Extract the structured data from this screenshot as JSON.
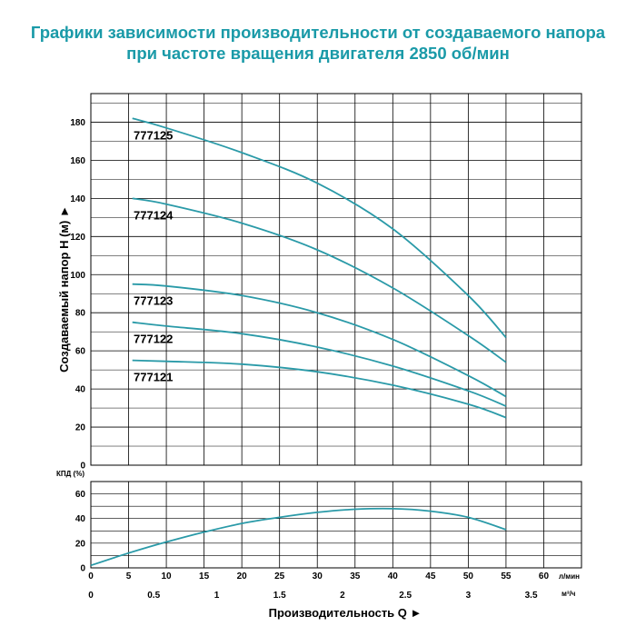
{
  "title": {
    "line1": "Графики зависимости производительности от создаваемого напора",
    "line2": "при частоте вращения двигателя 2850 об/мин"
  },
  "colors": {
    "title": "#1a9aa8",
    "curve": "#2a9aa8",
    "grid": "#000000"
  },
  "chart_data": [
    {
      "type": "line",
      "ylabel": "Создаваемый напор H (м) ►",
      "ylim": [
        0,
        195
      ],
      "yticks": [
        0,
        20,
        40,
        60,
        80,
        100,
        120,
        140,
        160,
        180
      ],
      "xlim": [
        0,
        65
      ],
      "xticks": [
        0,
        5,
        10,
        15,
        20,
        25,
        30,
        35,
        40,
        45,
        50,
        55,
        60
      ],
      "grid": true,
      "series": [
        {
          "name": "777125",
          "x": [
            5.5,
            10,
            20,
            30,
            40,
            50,
            55
          ],
          "values": [
            182,
            177,
            164,
            148,
            124,
            89,
            67
          ]
        },
        {
          "name": "777124",
          "x": [
            5.5,
            10,
            20,
            30,
            40,
            50,
            55
          ],
          "values": [
            140,
            137,
            127,
            113,
            93,
            68,
            54
          ]
        },
        {
          "name": "777123",
          "x": [
            5.5,
            10,
            20,
            30,
            40,
            50,
            55
          ],
          "values": [
            95,
            94,
            89,
            80,
            66,
            47,
            36
          ]
        },
        {
          "name": "777122",
          "x": [
            5.5,
            10,
            20,
            30,
            40,
            50,
            55
          ],
          "values": [
            75,
            73,
            69,
            62,
            52,
            39,
            31
          ]
        },
        {
          "name": "777121",
          "x": [
            5.5,
            10,
            20,
            30,
            40,
            50,
            55
          ],
          "values": [
            55,
            54.5,
            53,
            49,
            42,
            32,
            25
          ]
        }
      ]
    },
    {
      "type": "line",
      "ylabel": "КПД (%)",
      "ylim": [
        0,
        70
      ],
      "yticks": [
        0,
        20,
        40,
        60
      ],
      "xlim": [
        0,
        65
      ],
      "xticks": [
        0,
        5,
        10,
        15,
        20,
        25,
        30,
        35,
        40,
        45,
        50,
        55,
        60
      ],
      "xunit": "л/мин",
      "x2ticks": [
        {
          "label": "0",
          "q": 0
        },
        {
          "label": "0.5",
          "q": 8.33
        },
        {
          "label": "1",
          "q": 16.67
        },
        {
          "label": "1.5",
          "q": 25
        },
        {
          "label": "2",
          "q": 33.33
        },
        {
          "label": "2.5",
          "q": 41.67
        },
        {
          "label": "3",
          "q": 50
        },
        {
          "label": "3.5",
          "q": 58.33
        }
      ],
      "x2unit": "м³/ч",
      "xlabel": "Производительность Q ►",
      "grid": true,
      "series": [
        {
          "x": [
            0,
            5,
            10,
            15,
            20,
            25,
            30,
            35,
            40,
            45,
            50,
            55
          ],
          "values": [
            2,
            12,
            21,
            29,
            36,
            41,
            45,
            47.5,
            48,
            46,
            41,
            31
          ]
        }
      ]
    }
  ]
}
